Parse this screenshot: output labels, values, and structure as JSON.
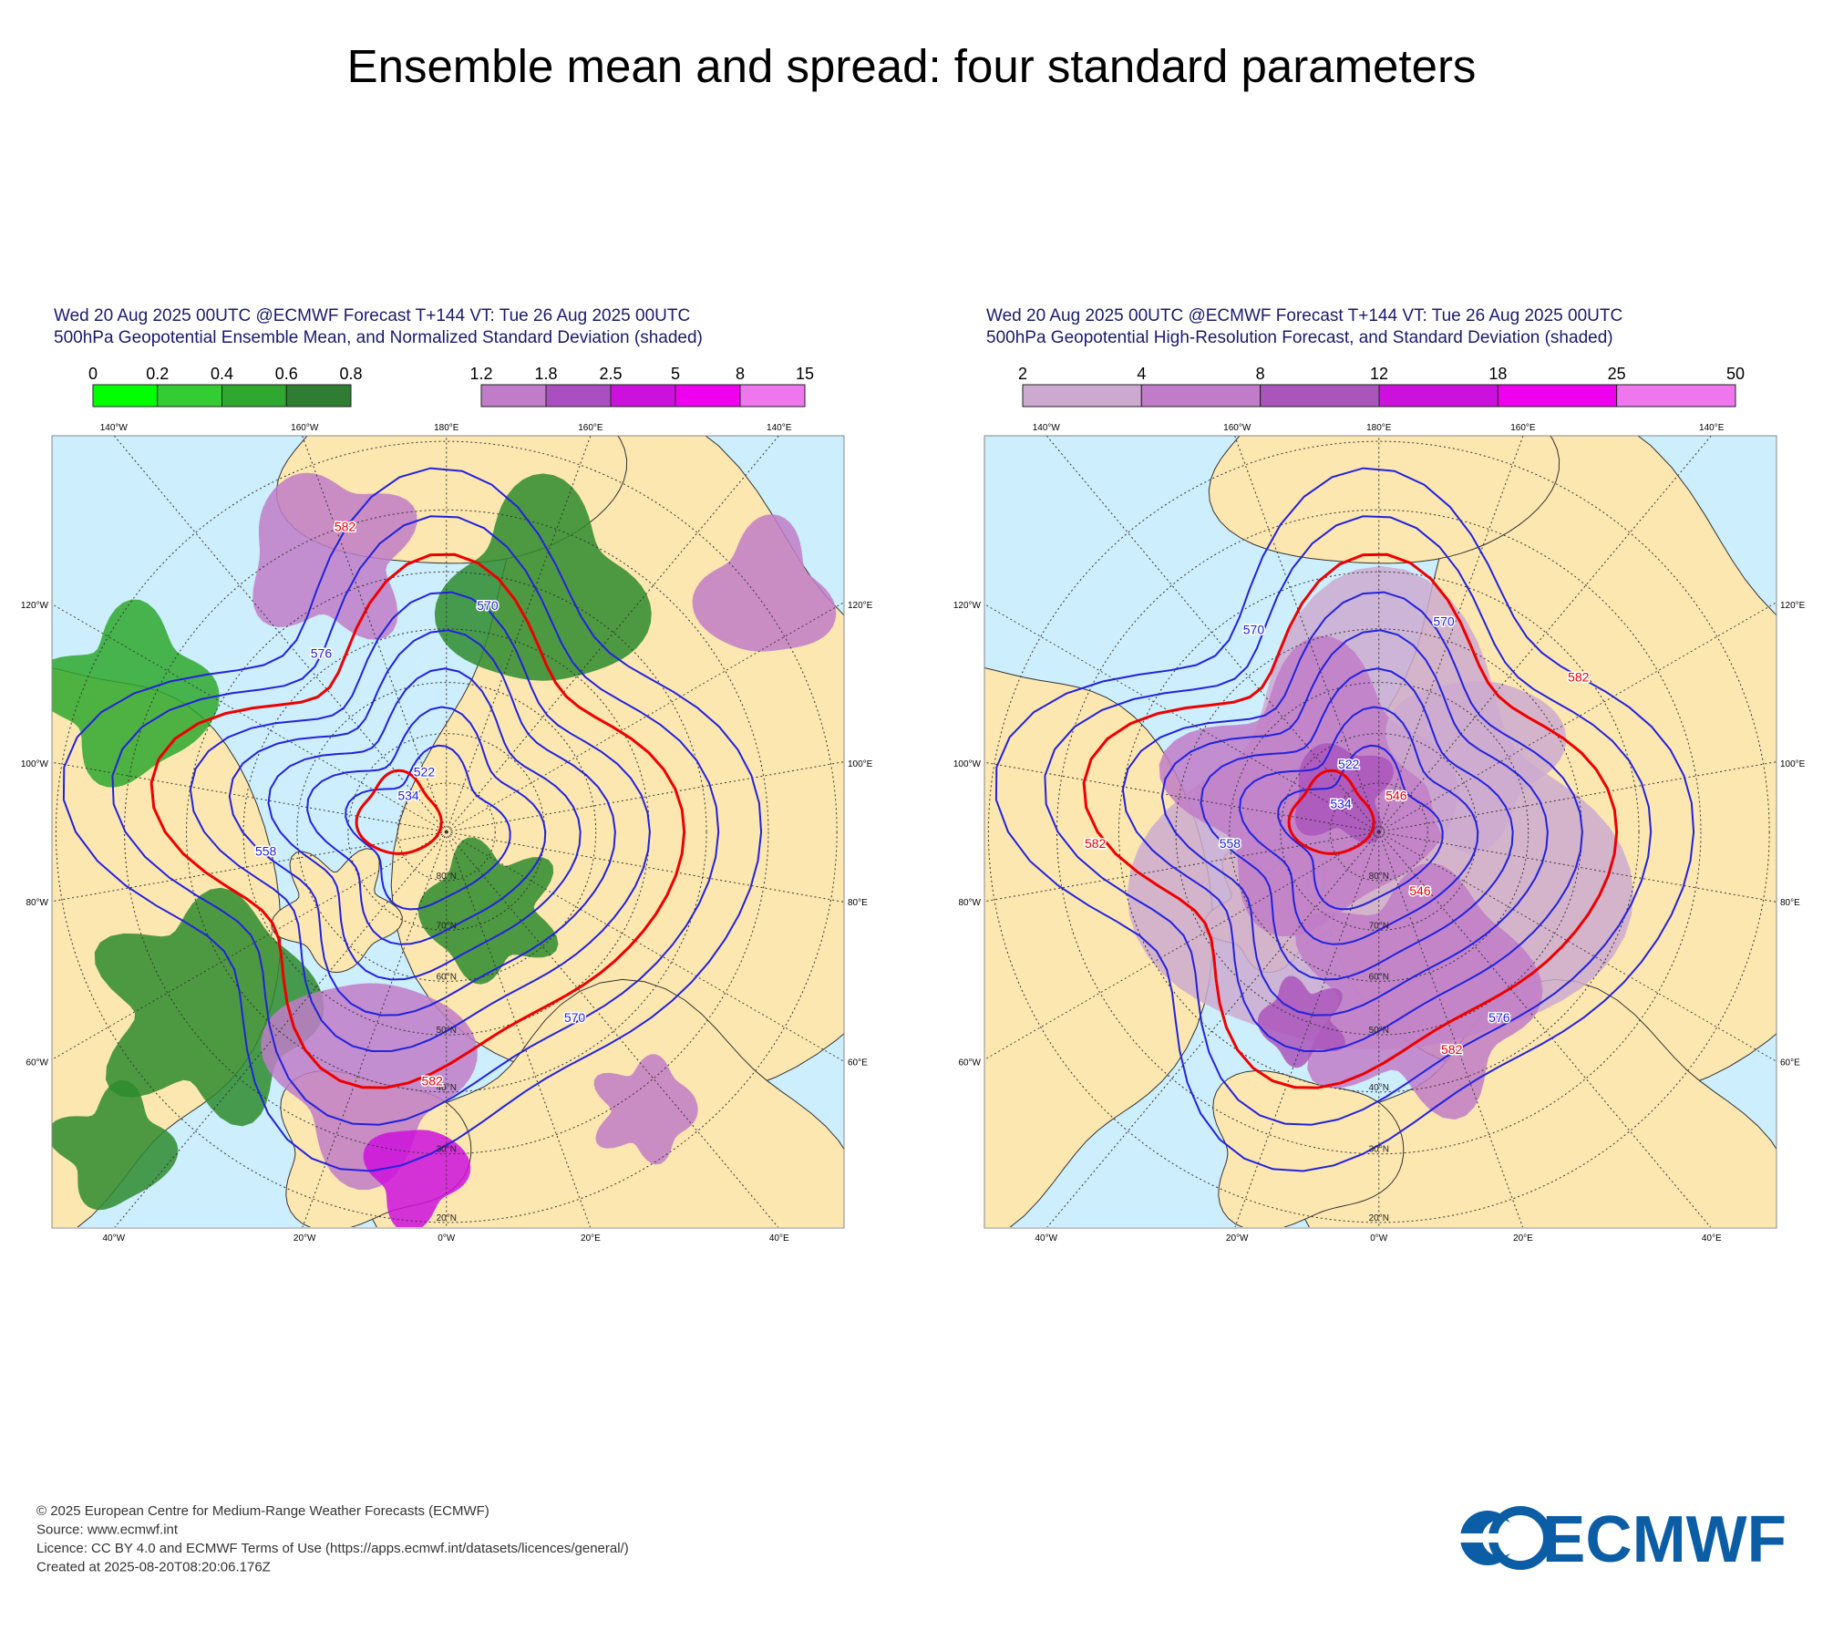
{
  "title": "Ensemble mean and spread: four standard parameters",
  "panels": [
    {
      "header": [
        "Wed 20 Aug 2025 00UTC @ECMWF Forecast T+144 VT: Tue 26 Aug 2025 00UTC",
        "500hPa Geopotential Ensemble Mean, and Normalized Standard Deviation (shaded)"
      ],
      "colorbars": [
        {
          "ticks": [
            0,
            0.2,
            0.4,
            0.6,
            0.8
          ],
          "colors": [
            "#00ff00",
            "#33cc33",
            "#2ea82e",
            "#2e7d32"
          ]
        },
        {
          "ticks": [
            1.2,
            1.8,
            2.5,
            5,
            8,
            15
          ],
          "colors": [
            "#c07cc8",
            "#aa4fbf",
            "#cc11dd",
            "#ee00ee",
            "#ee77ee"
          ]
        }
      ],
      "top_labels": [
        "140°W",
        "160°W",
        "180°E",
        "160°E",
        "140°E"
      ],
      "bottom_labels": [
        "40°W",
        "20°W",
        "0°W",
        "20°E",
        "40°E"
      ],
      "left_labels": [
        "120°W",
        "100°W",
        "80°W",
        "60°W"
      ],
      "right_labels": [
        "120°E",
        "100°E",
        "80°E",
        "60°E"
      ],
      "lat_labels": [
        "20°N",
        "30°N",
        "40°N",
        "50°N",
        "60°N",
        "70°N",
        "80°N"
      ],
      "contour_labels": [
        582,
        570,
        576,
        558,
        534,
        522,
        570,
        582
      ]
    },
    {
      "header": [
        "Wed 20 Aug 2025 00UTC @ECMWF Forecast T+144 VT: Tue 26 Aug 2025 00UTC",
        "500hPa Geopotential High-Resolution Forecast, and Standard Deviation (shaded)"
      ],
      "colorbars": [
        {
          "ticks": [
            2,
            4,
            8,
            12,
            18,
            25,
            50
          ],
          "colors": [
            "#ccaad0",
            "#c07cc8",
            "#aa55bb",
            "#cc11dd",
            "#ee00ee",
            "#ee77ee"
          ]
        }
      ],
      "top_labels": [
        "140°W",
        "160°W",
        "180°E",
        "160°E",
        "140°E"
      ],
      "bottom_labels": [
        "40°W",
        "20°W",
        "0°W",
        "20°E",
        "40°E"
      ],
      "left_labels": [
        "120°W",
        "100°W",
        "80°W",
        "60°W"
      ],
      "right_labels": [
        "120°E",
        "100°E",
        "80°E",
        "60°E"
      ],
      "lat_labels": [
        "20°N",
        "30°N",
        "40°N",
        "50°N",
        "60°N",
        "70°N",
        "80°N"
      ],
      "contour_labels": [
        570,
        570,
        582,
        522,
        534,
        546,
        558,
        582,
        546,
        576,
        582
      ]
    }
  ],
  "footer": [
    "© 2025 European Centre for Medium-Range Weather Forecasts (ECMWF)",
    "Source: www.ecmwf.int",
    "Licence: CC BY 4.0 and ECMWF Terms of Use (https://apps.ecmwf.int/datasets/licences/general/)",
    "Created at 2025-08-20T08:20:06.176Z"
  ],
  "logo": "ECMWF"
}
